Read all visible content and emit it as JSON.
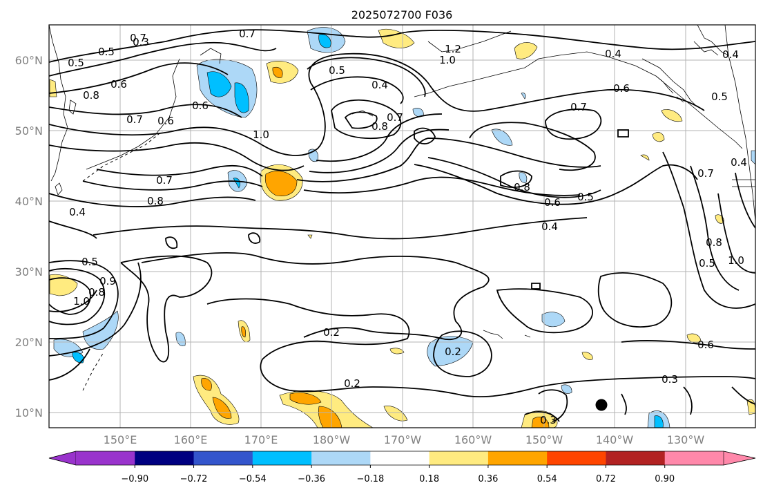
{
  "title": "2025072700 F036",
  "lat_labels": [
    "60°N",
    "50°N",
    "40°N",
    "30°N",
    "20°N",
    "10°N"
  ],
  "lon_labels": [
    "150°E",
    "160°E",
    "170°E",
    "180°W",
    "170°W",
    "160°W",
    "150°W",
    "140°W",
    "130°W"
  ],
  "colorbar": {
    "ticks": [
      "−0.90",
      "−0.72",
      "−0.54",
      "−0.36",
      "−0.18",
      "0.18",
      "0.36",
      "0.54",
      "0.72",
      "0.90"
    ],
    "colors": [
      "#9933cc",
      "#000080",
      "#3355cc",
      "#00bfff",
      "#add8f7",
      "#ffffff",
      "#ffeb80",
      "#ffa500",
      "#ff4500",
      "#b22222",
      "#ff88aa"
    ],
    "under_color": "#9933cc",
    "over_color": "#ff88aa"
  },
  "contour_labels": [
    "0.3",
    "0.7",
    "0.5",
    "0.6",
    "0.8",
    "0.7",
    "0.6",
    "1.0",
    "0.7",
    "0.8",
    "0.4",
    "0.5",
    "0.4",
    "0.8",
    "0.5",
    "0.4",
    "0.6",
    "0.7",
    "0.8",
    "0.6",
    "0.5",
    "0.4",
    "0.5",
    "0.7",
    "0.8",
    "1.0",
    "0.6",
    "0.4",
    "1.0",
    "0.5",
    "0.7",
    "0.8",
    "0.9",
    "0.2",
    "0.2",
    "0.2",
    "0.3",
    "0.3",
    "0.6",
    "1.2",
    "1.0",
    "0.4",
    "0.5",
    "0.7"
  ]
}
